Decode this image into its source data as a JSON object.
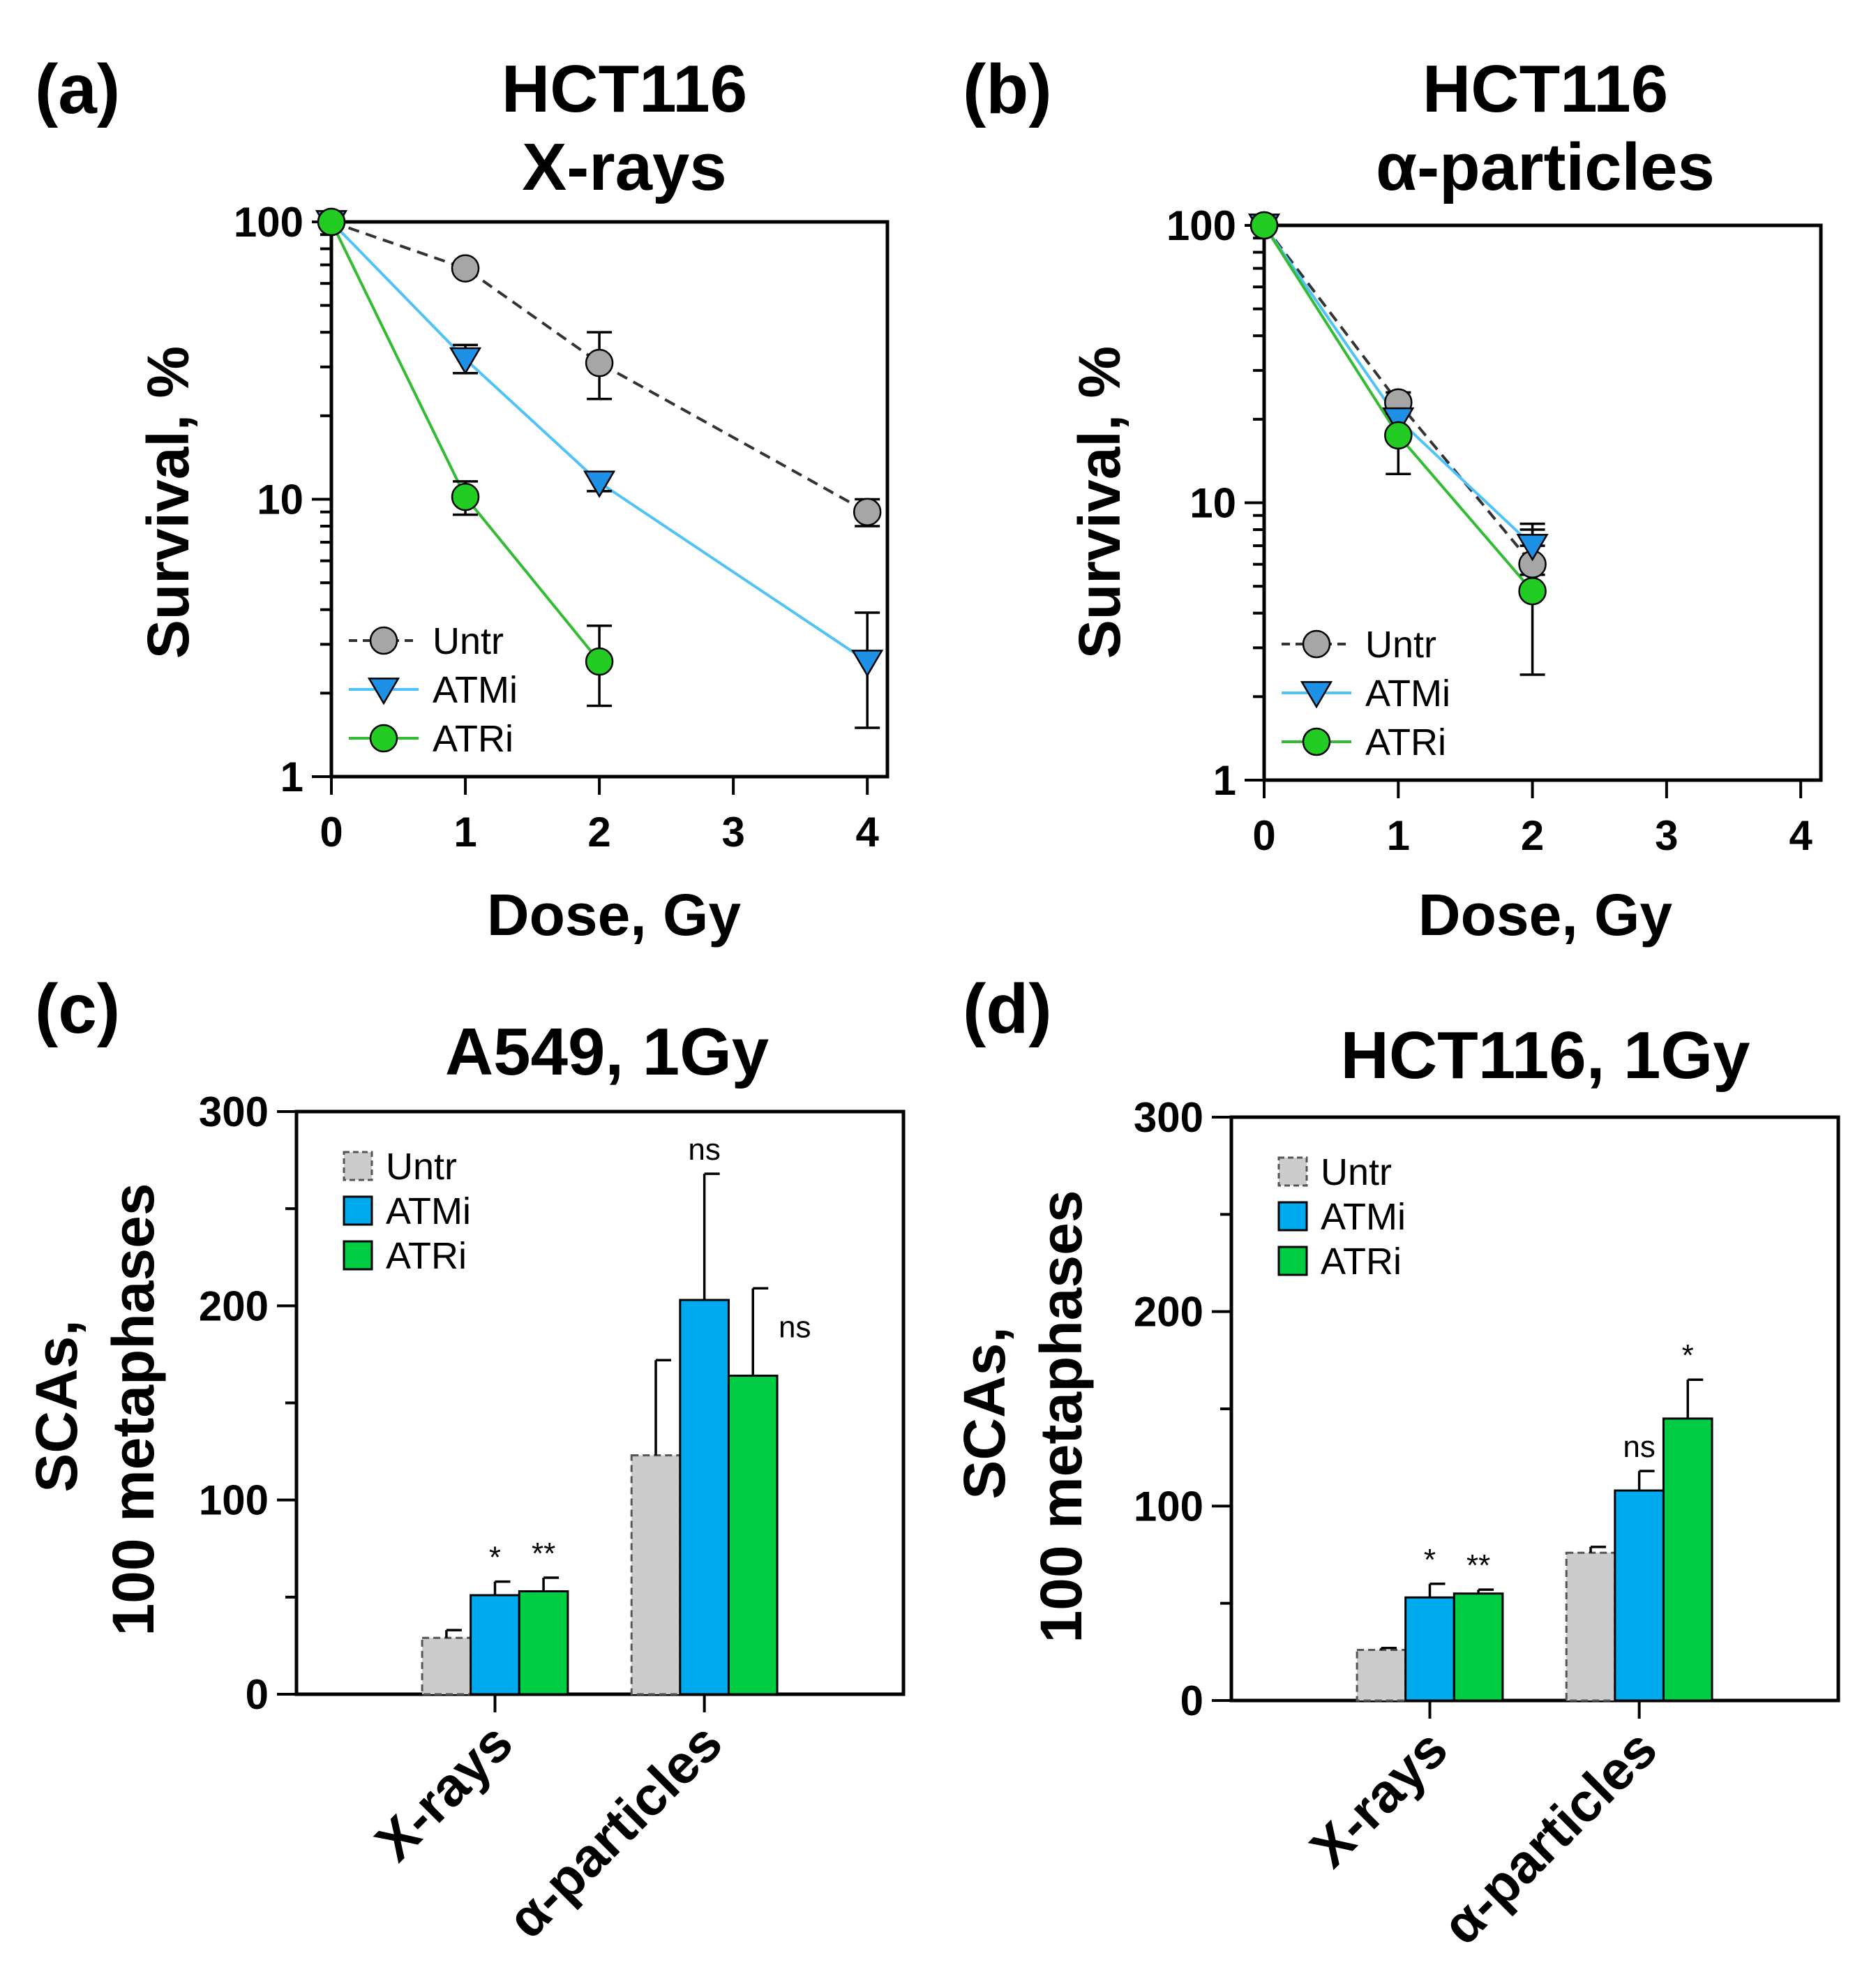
{
  "chart_data": [
    {
      "panel": "(a)",
      "type": "line",
      "title": "HCT116",
      "subtitle": "X-rays",
      "xlabel": "Dose, Gy",
      "ylabel": "Survival, %",
      "yscale": "log",
      "xlim": [
        0,
        4.15
      ],
      "ylim": [
        1,
        100
      ],
      "xticks": [
        "0",
        "1",
        "2",
        "3",
        "4"
      ],
      "yticks": [
        "1",
        "10",
        "100"
      ],
      "legend_position": "bottom-left",
      "series": [
        {
          "name": "Untr",
          "marker": "circle",
          "color": "#a6a6a6",
          "line_color": "#333333",
          "dashed": true,
          "x": [
            0,
            1,
            2,
            4
          ],
          "y": [
            100,
            68,
            31,
            9
          ],
          "err_low": [
            0,
            2,
            8,
            1
          ],
          "err_high": [
            0,
            2,
            9,
            1
          ]
        },
        {
          "name": "ATMi",
          "marker": "triangle-down",
          "color": "#1e90e6",
          "line_color": "#4fc3f7",
          "dashed": false,
          "x": [
            0,
            1,
            2,
            4
          ],
          "y": [
            100,
            32,
            11.5,
            2.6
          ],
          "err_low": [
            0,
            3.5,
            0.8,
            1.1
          ],
          "err_high": [
            0,
            4,
            0.8,
            1.3
          ]
        },
        {
          "name": "ATRi",
          "marker": "circle",
          "color": "#22cc22",
          "line_color": "#33bb33",
          "dashed": false,
          "x": [
            0,
            1,
            2
          ],
          "y": [
            100,
            10.2,
            2.6
          ],
          "err_low": [
            0,
            1.4,
            0.8
          ],
          "err_high": [
            0,
            1.4,
            0.9
          ]
        }
      ]
    },
    {
      "panel": "(b)",
      "type": "line",
      "title": "HCT116",
      "subtitle": "α-particles",
      "xlabel": "Dose, Gy",
      "ylabel": "Survival, %",
      "yscale": "log",
      "xlim": [
        0,
        4.15
      ],
      "ylim": [
        1,
        100
      ],
      "xticks": [
        "0",
        "1",
        "2",
        "3",
        "4"
      ],
      "yticks": [
        "1",
        "10",
        "100"
      ],
      "legend_position": "bottom-left",
      "series": [
        {
          "name": "Untr",
          "marker": "circle",
          "color": "#a6a6a6",
          "line_color": "#333333",
          "dashed": true,
          "x": [
            0,
            1,
            2
          ],
          "y": [
            100,
            23,
            6
          ],
          "err_low": [
            0,
            2,
            1
          ],
          "err_high": [
            0,
            2,
            1
          ]
        },
        {
          "name": "ATMi",
          "marker": "triangle-down",
          "color": "#1e90e6",
          "line_color": "#4fc3f7",
          "dashed": false,
          "x": [
            0,
            1,
            2
          ],
          "y": [
            100,
            20,
            7
          ],
          "err_low": [
            0,
            2,
            1.5
          ],
          "err_high": [
            0,
            2,
            1.4
          ]
        },
        {
          "name": "ATRi",
          "marker": "circle",
          "color": "#22cc22",
          "line_color": "#33bb33",
          "dashed": false,
          "x": [
            0,
            1,
            2
          ],
          "y": [
            100,
            17.5,
            4.8
          ],
          "err_low": [
            0,
            4.8,
            2.4
          ],
          "err_high": [
            0,
            3.5,
            3.2
          ]
        }
      ]
    },
    {
      "panel": "(c)",
      "type": "bar",
      "title": "A549, 1Gy",
      "ylabel_line1": "SCAs,",
      "ylabel_line2": "100 metaphases",
      "ylim": [
        0,
        300
      ],
      "yticks": [
        "0",
        "100",
        "200",
        "300"
      ],
      "categories": [
        "X-rays",
        "α-particles"
      ],
      "legend_position": "top-left",
      "series": [
        {
          "name": "Untr",
          "color": "#cccccc",
          "dashed": true,
          "values": [
            29,
            123
          ],
          "err": [
            4,
            49
          ],
          "sig": [
            "",
            ""
          ]
        },
        {
          "name": "ATMi",
          "color": "#00aaee",
          "dashed": false,
          "values": [
            51,
            203
          ],
          "err": [
            7,
            65
          ],
          "sig": [
            "*",
            "ns"
          ]
        },
        {
          "name": "ATRi",
          "color": "#00cc44",
          "dashed": false,
          "values": [
            53,
            164
          ],
          "err": [
            7,
            45
          ],
          "sig": [
            "**",
            "ns"
          ]
        }
      ]
    },
    {
      "panel": "(d)",
      "type": "bar",
      "title": "HCT116, 1Gy",
      "ylabel_line1": "SCAs,",
      "ylabel_line2": "100 metaphases",
      "ylim": [
        0,
        300
      ],
      "yticks": [
        "0",
        "100",
        "200",
        "300"
      ],
      "categories": [
        "X-rays",
        "α-particles"
      ],
      "legend_position": "top-left",
      "series": [
        {
          "name": "Untr",
          "color": "#cccccc",
          "dashed": true,
          "values": [
            26,
            76
          ],
          "err": [
            1,
            3
          ],
          "sig": [
            "",
            ""
          ]
        },
        {
          "name": "ATMi",
          "color": "#00aaee",
          "dashed": false,
          "values": [
            53,
            108
          ],
          "err": [
            7,
            10
          ],
          "sig": [
            "*",
            "ns"
          ]
        },
        {
          "name": "ATRi",
          "color": "#00cc44",
          "dashed": false,
          "values": [
            55,
            145
          ],
          "err": [
            2,
            20
          ],
          "sig": [
            "**",
            "*"
          ]
        }
      ]
    }
  ]
}
